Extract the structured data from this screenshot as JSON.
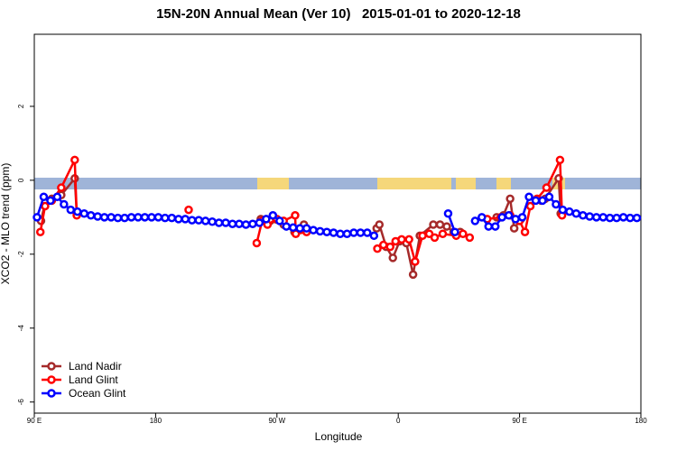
{
  "chart_data": {
    "type": "line",
    "title": "15N-20N Annual Mean (Ver 10)   2015-01-01 to 2020-12-18",
    "x_label": "Longitude",
    "y_label": "XCO2 - MLO trend (ppm)",
    "xlim": [
      90,
      540
    ],
    "xticks": [
      {
        "value": 90,
        "label": "90 E"
      },
      {
        "value": 180,
        "label": "180"
      },
      {
        "value": 270,
        "label": "90 W"
      },
      {
        "value": 360,
        "label": "0"
      },
      {
        "value": 450,
        "label": "90 E"
      },
      {
        "value": 540,
        "label": "180"
      }
    ],
    "ylim": [
      -6.3,
      3.95
    ],
    "yticks": [
      -6,
      -4,
      -2,
      0,
      2
    ],
    "legend": "bottom-left",
    "series": [
      {
        "name": "Land Nadir",
        "color": "#a52a2a",
        "x": [
          95,
          98,
          103,
          110,
          120,
          121.5,
          null,
          258,
          265,
          275,
          283,
          290,
          null,
          344,
          346,
          351,
          356,
          361,
          366,
          371,
          376,
          386,
          391,
          396,
          401,
          406,
          null,
          433,
          438,
          443,
          446,
          451,
          null,
          466,
          469,
          479,
          480.5
        ],
        "values": [
          -1.1,
          -0.6,
          -0.5,
          -0.4,
          0.05,
          -0.9,
          null,
          -1.05,
          -1.1,
          -1.2,
          -1.4,
          -1.2,
          null,
          -1.3,
          -1.2,
          -1.8,
          -2.1,
          -1.65,
          -1.7,
          -2.55,
          -1.5,
          -1.2,
          -1.2,
          -1.25,
          -1.4,
          -1.4,
          null,
          -1.0,
          -0.95,
          -0.5,
          -1.3,
          -1.05,
          null,
          -0.55,
          -0.5,
          0.05,
          -0.9
        ]
      },
      {
        "name": "Land Glint",
        "color": "#ff0000",
        "x": [
          94.5,
          98,
          103,
          110,
          120,
          121.5,
          null,
          204.5,
          null,
          255,
          259,
          263,
          270,
          275,
          283.5,
          284,
          292,
          null,
          344.5,
          349,
          354,
          358,
          362.5,
          368,
          372.5,
          378,
          383,
          387,
          393,
          403,
          408,
          413,
          null,
          426,
          436,
          443,
          450,
          454,
          458,
          463,
          470,
          480,
          481.5
        ],
        "values": [
          -1.4,
          -0.7,
          -0.55,
          -0.2,
          0.55,
          -0.95,
          null,
          -0.8,
          null,
          -1.7,
          -1.1,
          -1.2,
          -1.05,
          -1.1,
          -0.95,
          -1.45,
          -1.4,
          null,
          -1.85,
          -1.75,
          -1.8,
          -1.65,
          -1.6,
          -1.6,
          -2.2,
          -1.5,
          -1.45,
          -1.55,
          -1.45,
          -1.5,
          -1.45,
          -1.55,
          null,
          -1.05,
          -1.0,
          -0.95,
          -1.1,
          -1.4,
          -0.7,
          -0.5,
          -0.2,
          0.55,
          -0.95
        ]
      },
      {
        "name": "Ocean Glint",
        "color": "#0000ff",
        "x": [
          92,
          97,
          102,
          107,
          112,
          117,
          122,
          127,
          132,
          137,
          142,
          147,
          152,
          157,
          162,
          167,
          172,
          177,
          182,
          187,
          192,
          197,
          202,
          207,
          212,
          217,
          222,
          227,
          232,
          237,
          242,
          247,
          252,
          257,
          262,
          267,
          272,
          277,
          282,
          287,
          292,
          297,
          302,
          307,
          312,
          317,
          322,
          327,
          332,
          337,
          342,
          347,
          352,
          357,
          362,
          367,
          372,
          377,
          382,
          387,
          392,
          397,
          402,
          407,
          412,
          417,
          422,
          427,
          432,
          437,
          442,
          447,
          452,
          457,
          462,
          467,
          472,
          477,
          482,
          487,
          492,
          497,
          502,
          507,
          512,
          517,
          522,
          527,
          532,
          537
        ],
        "values": [
          -1.0,
          -0.45,
          -0.55,
          -0.45,
          -0.65,
          -0.8,
          -0.85,
          -0.9,
          -0.95,
          -0.98,
          -1.0,
          -1.0,
          -1.02,
          -1.02,
          -1.0,
          -1.0,
          -1.0,
          -1.0,
          -1.0,
          -1.02,
          -1.02,
          -1.05,
          -1.05,
          -1.08,
          -1.08,
          -1.1,
          -1.12,
          -1.15,
          -1.15,
          -1.18,
          -1.18,
          -1.2,
          -1.18,
          -1.15,
          -1.05,
          -0.95,
          -1.1,
          -1.25,
          -1.28,
          -1.3,
          -1.3,
          -1.35,
          -1.38,
          -1.4,
          -1.42,
          -1.45,
          -1.45,
          -1.42,
          -1.42,
          -1.42,
          -1.5,
          null,
          null,
          null,
          null,
          null,
          null,
          null,
          null,
          null,
          null,
          -0.9,
          -1.4,
          null,
          null,
          -1.1,
          -1.0,
          -1.25,
          -1.25,
          -1.0,
          -0.95,
          -1.05,
          -1.0,
          -0.45,
          -0.55,
          -0.55,
          -0.45,
          -0.65,
          -0.8,
          -0.85,
          -0.9,
          -0.95,
          -0.98,
          -1.0,
          -1.0,
          -1.02,
          -1.02,
          -1.0,
          -1.02,
          -1.02
        ]
      }
    ]
  }
}
